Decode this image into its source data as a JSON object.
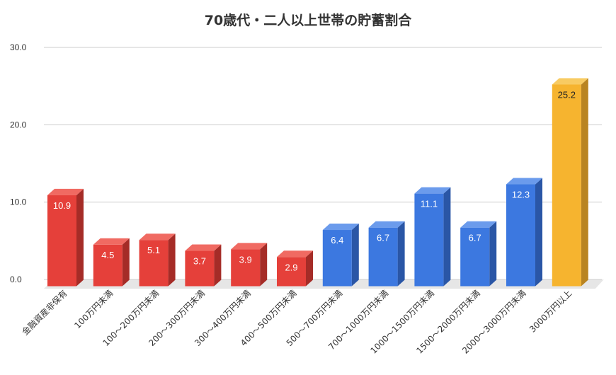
{
  "chart_data": {
    "type": "bar",
    "title": "70歳代・二人以上世帯の貯蓄割合",
    "xlabel": "",
    "ylabel": "",
    "ylim": [
      0,
      30
    ],
    "yticks": [
      "0.0",
      "10.0",
      "20.0",
      "30.0"
    ],
    "grid": true,
    "legend": "none",
    "categories": [
      "金融資産非保有",
      "100万円未満",
      "100～200万円未満",
      "200～300万円未満",
      "300～400万円未満",
      "400～500万円未満",
      "500～700万円未満",
      "700～1000万円未満",
      "1000～1500万円未満",
      "1500～2000万円未満",
      "2000～3000万円未満",
      "3000万円以上"
    ],
    "values": [
      10.9,
      4.5,
      5.1,
      3.7,
      3.9,
      2.9,
      6.4,
      6.7,
      11.1,
      6.7,
      12.3,
      25.2
    ],
    "data_labels": [
      "10.9",
      "4.5",
      "5.1",
      "3.7",
      "3.9",
      "2.9",
      "6.4",
      "6.7",
      "11.1",
      "6.7",
      "12.3",
      "25.2"
    ],
    "bar_colors": [
      "red",
      "red",
      "red",
      "red",
      "red",
      "red",
      "blue",
      "blue",
      "blue",
      "blue",
      "blue",
      "yellow"
    ],
    "palette": {
      "red": {
        "front": "#e5403a",
        "side": "#a52c27",
        "top": "#f06a62",
        "label": "#ffffff"
      },
      "blue": {
        "front": "#3c78e0",
        "side": "#2a56a6",
        "top": "#6b9bec",
        "label": "#ffffff"
      },
      "yellow": {
        "front": "#f6b42f",
        "side": "#b98421",
        "top": "#f8cb62",
        "label": "#222222"
      }
    },
    "grid_color": "#cccccc",
    "floor_color": "#e6e6e6"
  }
}
